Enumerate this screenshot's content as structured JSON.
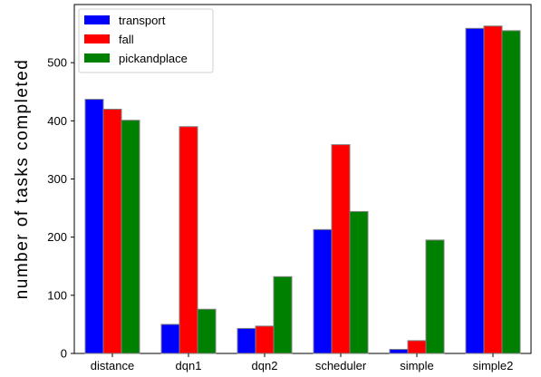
{
  "chart_data": {
    "type": "bar",
    "categories": [
      "distance",
      "dqn1",
      "dqn2",
      "scheduler",
      "simple",
      "simple2"
    ],
    "series": [
      {
        "name": "transport",
        "color": "#0000ff",
        "values": [
          437,
          50,
          43,
          213,
          7,
          559
        ]
      },
      {
        "name": "fall",
        "color": "#ff0000",
        "values": [
          420,
          390,
          47,
          359,
          22,
          563
        ]
      },
      {
        "name": "pickandplace",
        "color": "#008000",
        "values": [
          401,
          76,
          132,
          244,
          195,
          555
        ]
      }
    ],
    "ylabel": "number of tasks completed",
    "xlabel": "",
    "ylim": [
      0,
      600
    ],
    "yticks": [
      0,
      100,
      200,
      300,
      400,
      500
    ],
    "grid": false,
    "legend_position": "top-left"
  }
}
